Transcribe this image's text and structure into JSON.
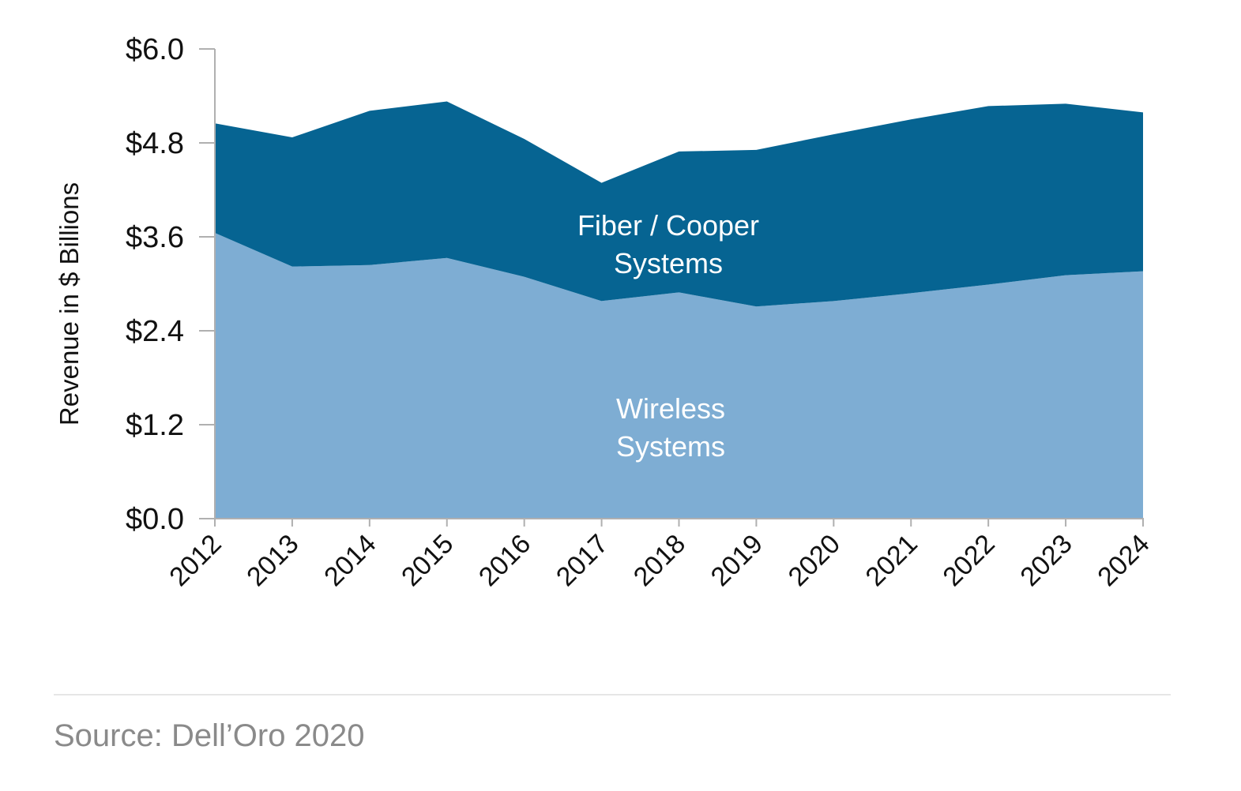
{
  "colors": {
    "wireless": "#7eadd3",
    "fiber_copper": "#066492",
    "axis": "#b0b0b0",
    "text": "#111111",
    "label_on_area": "#ffffff",
    "source_text": "#8a8a8a"
  },
  "source": "Source: Dell’Oro 2020",
  "chart_data": {
    "type": "area",
    "stacked": true,
    "x": [
      "2012",
      "2013",
      "2014",
      "2015",
      "2016",
      "2017",
      "2018",
      "2019",
      "2020",
      "2021",
      "2022",
      "2023",
      "2024"
    ],
    "series": [
      {
        "name": "Wireless Systems",
        "label_lines": [
          "Wireless",
          "Systems"
        ],
        "values": [
          3.65,
          3.22,
          3.24,
          3.33,
          3.09,
          2.78,
          2.89,
          2.71,
          2.78,
          2.88,
          2.99,
          3.11,
          3.16
        ]
      },
      {
        "name": "Fiber / Cooper Systems",
        "label_lines": [
          "Fiber / Cooper",
          "Systems"
        ],
        "values": [
          1.4,
          1.65,
          1.97,
          2.0,
          1.76,
          1.51,
          1.8,
          2.0,
          2.13,
          2.22,
          2.28,
          2.19,
          2.03
        ]
      }
    ],
    "y_ticks": [
      "$0.0",
      "$1.2",
      "$2.4",
      "$3.6",
      "$4.8",
      "$6.0"
    ],
    "y_tick_values": [
      0,
      1.2,
      2.4,
      3.6,
      4.8,
      6.0
    ],
    "ylabel": "Revenue in $ Billions",
    "xlabel": "",
    "ylim": [
      0,
      6.0
    ],
    "grid": false,
    "legend": "none; series labelled inside areas"
  }
}
